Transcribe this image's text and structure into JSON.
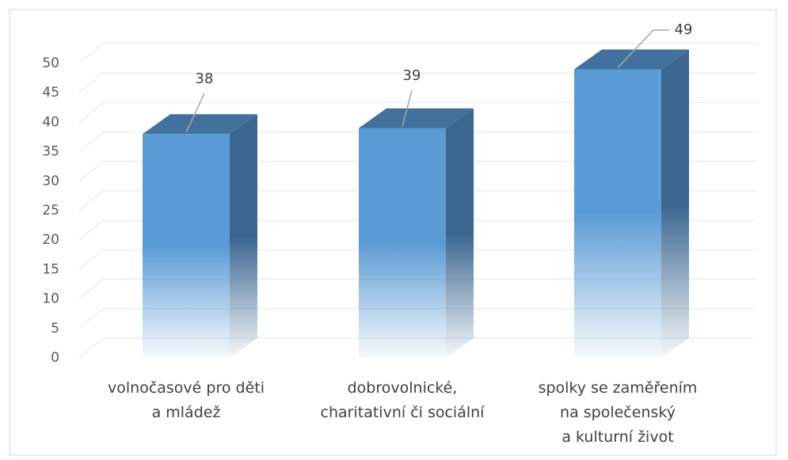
{
  "chart_data": {
    "type": "bar3d",
    "categories": [
      "volnočasové pro děti a mládež",
      "dobrovolnické, charitativní či sociální",
      "spolky se zaměřením na společenský a kulturní život"
    ],
    "values": [
      38,
      39,
      49
    ],
    "color": "#5b9bd5",
    "ylim": [
      0,
      50
    ],
    "yticks": [
      0,
      5,
      10,
      15,
      20,
      25,
      30,
      35,
      40,
      45,
      50
    ],
    "grid": true
  }
}
